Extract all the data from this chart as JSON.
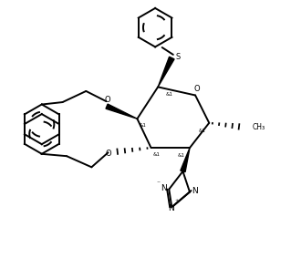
{
  "background": "#ffffff",
  "line_color": "#000000",
  "line_width": 1.4,
  "figsize": [
    3.19,
    3.06
  ],
  "dpi": 100,
  "xlim": [
    0,
    10
  ],
  "ylim": [
    0,
    10
  ]
}
